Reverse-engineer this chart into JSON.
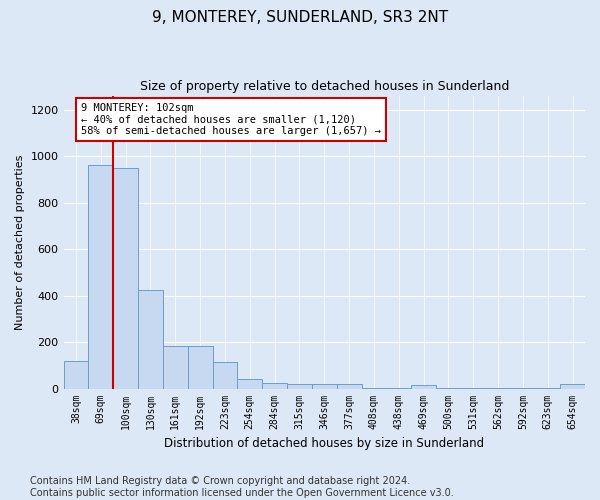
{
  "title": "9, MONTEREY, SUNDERLAND, SR3 2NT",
  "subtitle": "Size of property relative to detached houses in Sunderland",
  "xlabel": "Distribution of detached houses by size in Sunderland",
  "ylabel": "Number of detached properties",
  "categories": [
    "38sqm",
    "69sqm",
    "100sqm",
    "130sqm",
    "161sqm",
    "192sqm",
    "223sqm",
    "254sqm",
    "284sqm",
    "315sqm",
    "346sqm",
    "377sqm",
    "408sqm",
    "438sqm",
    "469sqm",
    "500sqm",
    "531sqm",
    "562sqm",
    "592sqm",
    "623sqm",
    "654sqm"
  ],
  "values": [
    120,
    960,
    950,
    425,
    185,
    185,
    115,
    40,
    22,
    18,
    18,
    18,
    2,
    2,
    15,
    2,
    2,
    2,
    2,
    2,
    18
  ],
  "bar_color": "#c6d9f0",
  "bar_edge_color": "#6b9ec8",
  "red_line_x": 1.5,
  "red_line_color": "#cc0000",
  "annotation_text": "9 MONTEREY: 102sqm\n← 40% of detached houses are smaller (1,120)\n58% of semi-detached houses are larger (1,657) →",
  "annotation_box_color": "#ffffff",
  "annotation_box_edge_color": "#cc0000",
  "ylim": [
    0,
    1260
  ],
  "yticks": [
    0,
    200,
    400,
    600,
    800,
    1000,
    1200
  ],
  "footer_text": "Contains HM Land Registry data © Crown copyright and database right 2024.\nContains public sector information licensed under the Open Government Licence v3.0.",
  "background_color": "#dce8f5",
  "plot_background_color": "#dce8f5",
  "title_fontsize": 11,
  "subtitle_fontsize": 9,
  "footer_fontsize": 7
}
